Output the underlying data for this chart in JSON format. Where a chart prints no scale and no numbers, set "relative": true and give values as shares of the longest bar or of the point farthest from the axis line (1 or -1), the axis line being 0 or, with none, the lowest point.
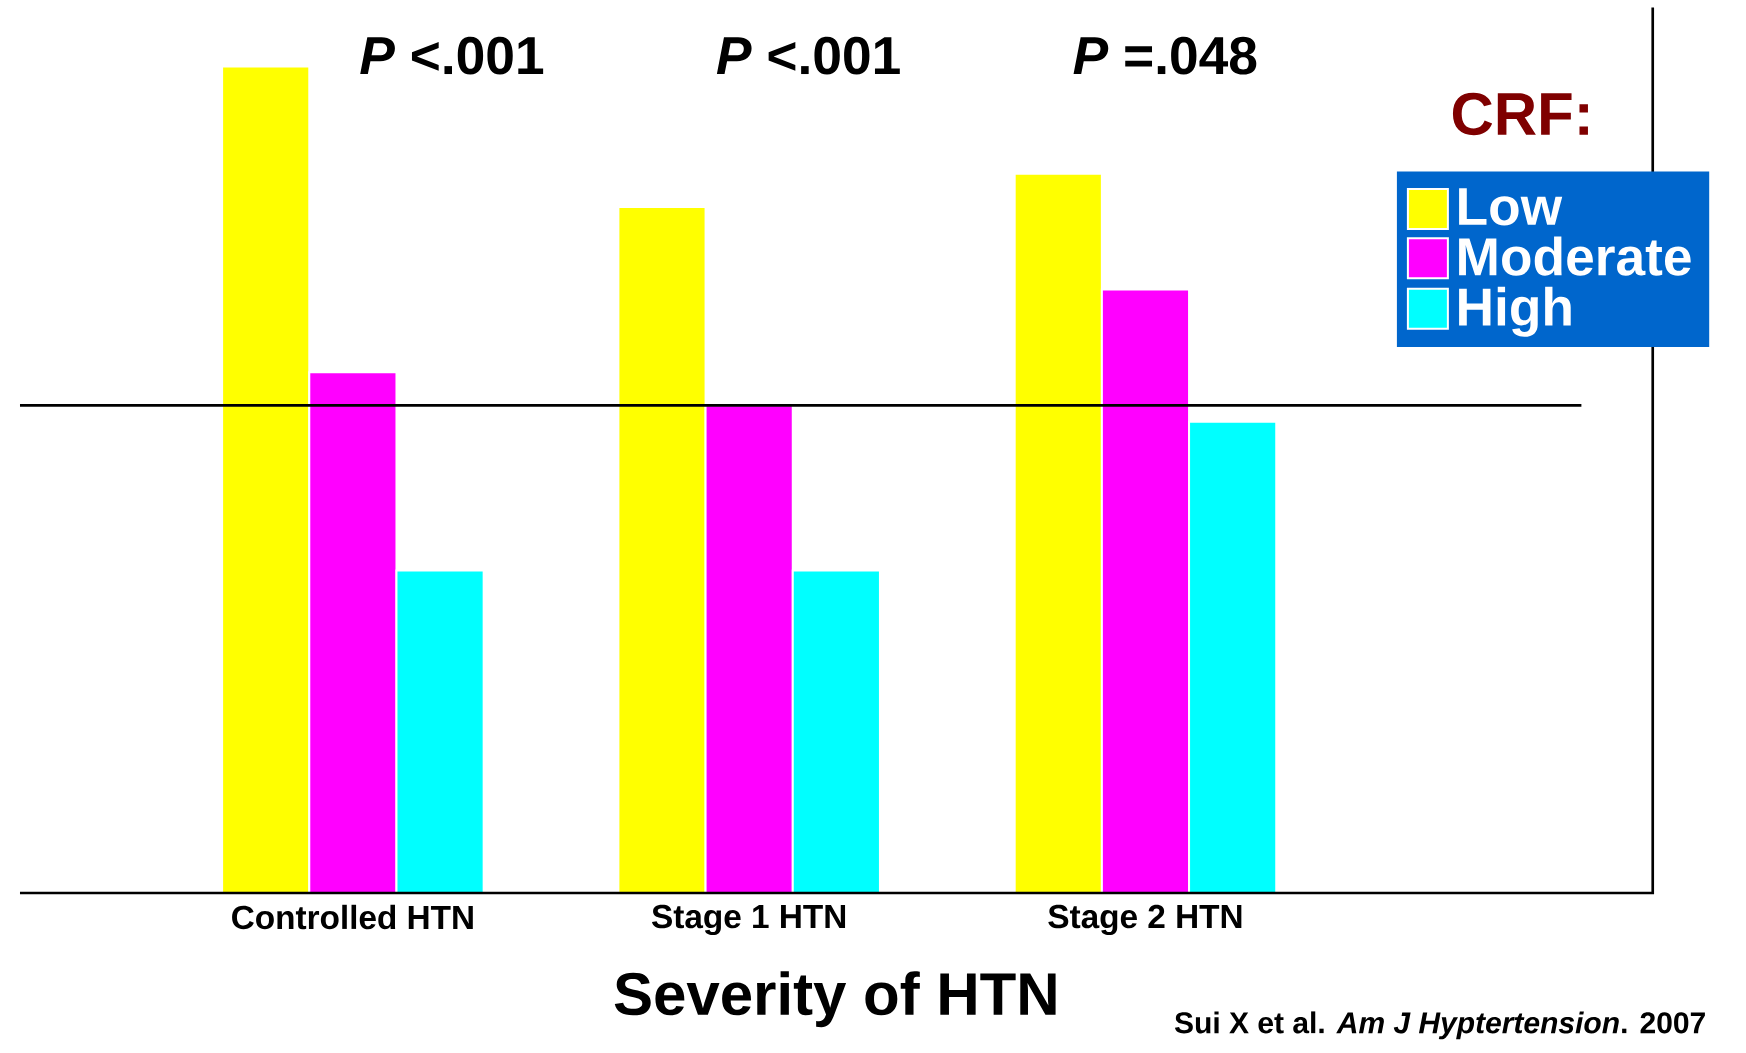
{
  "chart_data": {
    "type": "bar",
    "relative": true,
    "xlabel": "Severity of HTN",
    "legend_title": "CRF:",
    "legend": "right",
    "categories": [
      "Controlled HTN",
      "Stage 1 HTN",
      "Stage 2 HTN"
    ],
    "series": [
      {
        "name": "Low",
        "color": "#ffff00",
        "values": [
          1.0,
          0.83,
          0.87
        ]
      },
      {
        "name": "Moderate",
        "color": "#ff00ff",
        "values": [
          0.63,
          0.59,
          0.73
        ]
      },
      {
        "name": "High",
        "color": "#00ffff",
        "values": [
          0.39,
          0.39,
          0.57
        ]
      }
    ],
    "ref_lines": [
      {
        "axis": "y",
        "value": 0.59,
        "color": "#000000"
      }
    ],
    "annotations": [
      "*P* <.001",
      "*P* <.001",
      "*P* =.048",
      "Sui X et al. *Am J Hyptertension*. 2007"
    ]
  }
}
